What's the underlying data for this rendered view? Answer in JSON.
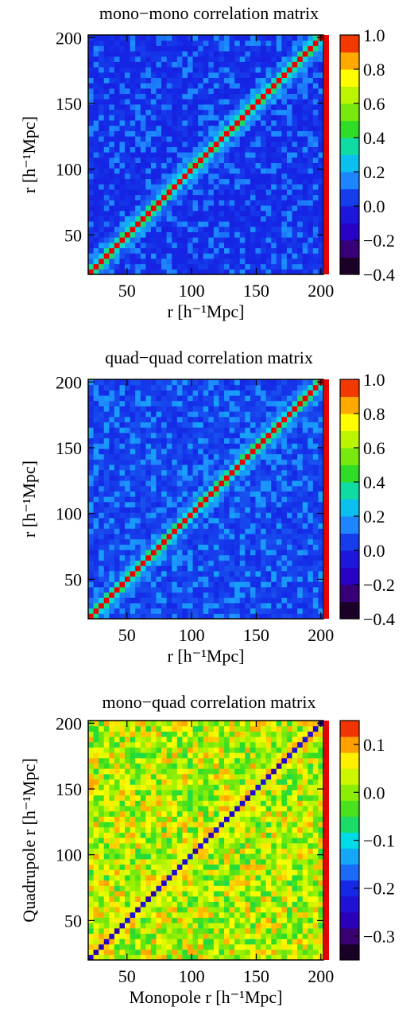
{
  "chart_data": [
    {
      "type": "heatmap",
      "title": "mono−mono correlation matrix",
      "xlabel": "r [h⁻¹Mpc]",
      "ylabel": "r [h⁻¹Mpc]",
      "xlim": [
        20,
        202
      ],
      "ylim": [
        20,
        202
      ],
      "xticks": [
        50,
        100,
        150,
        200
      ],
      "yticks": [
        50,
        100,
        150,
        200
      ],
      "colorbar": {
        "range": [
          -0.4,
          1.0
        ],
        "ticks": [
          1.0,
          0.8,
          0.6,
          0.4,
          0.2,
          0.0,
          -0.2,
          -0.4
        ],
        "tick_labels": [
          "1.0",
          "0.8",
          "0.6",
          "0.4",
          "0.2",
          "0.0",
          "−0.2",
          "−0.4"
        ]
      },
      "grid_bins": 45,
      "diagonal_value": 1.0,
      "near_diagonal_value": 0.25,
      "background_value": 0.02
    },
    {
      "type": "heatmap",
      "title": "quad−quad correlation matrix",
      "xlabel": "r [h⁻¹Mpc]",
      "ylabel": "r [h⁻¹Mpc]",
      "xlim": [
        20,
        202
      ],
      "ylim": [
        20,
        202
      ],
      "xticks": [
        50,
        100,
        150,
        200
      ],
      "yticks": [
        50,
        100,
        150,
        200
      ],
      "colorbar": {
        "range": [
          -0.4,
          1.0
        ],
        "ticks": [
          1.0,
          0.8,
          0.6,
          0.4,
          0.2,
          0.0,
          -0.2,
          -0.4
        ],
        "tick_labels": [
          "1.0",
          "0.8",
          "0.6",
          "0.4",
          "0.2",
          "0.0",
          "−0.2",
          "−0.4"
        ]
      },
      "grid_bins": 45,
      "diagonal_value": 1.0,
      "near_diagonal_value": 0.25,
      "background_value": 0.05
    },
    {
      "type": "heatmap",
      "title": "mono−quad correlation matrix",
      "xlabel": "Monopole r [h⁻¹Mpc]",
      "ylabel": "Quadrupole r [h⁻¹Mpc]",
      "xlim": [
        20,
        202
      ],
      "ylim": [
        20,
        202
      ],
      "xticks": [
        50,
        100,
        150,
        200
      ],
      "yticks": [
        50,
        100,
        150,
        200
      ],
      "colorbar": {
        "range": [
          -0.35,
          0.15
        ],
        "ticks": [
          0.1,
          0.0,
          -0.1,
          -0.2,
          -0.3
        ],
        "tick_labels": [
          "0.1",
          "0.0",
          "−0.1",
          "−0.2",
          "−0.3"
        ]
      },
      "grid_bins": 45,
      "diagonal_value": -0.25,
      "near_diagonal_value": 0.1,
      "background_value": 0.02
    }
  ]
}
